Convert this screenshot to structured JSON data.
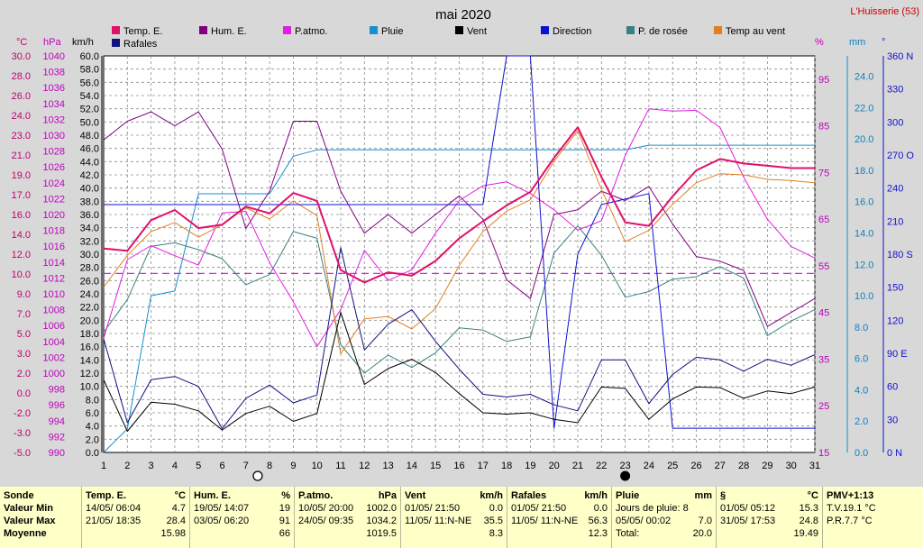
{
  "header": {
    "title": "mai 2020",
    "station": "L'Huisserie (53)"
  },
  "legend": [
    {
      "label": "Temp. E.",
      "color": "#e0106a"
    },
    {
      "label": "Hum. E.",
      "color": "#800080"
    },
    {
      "label": "P.atmo.",
      "color": "#e020e0"
    },
    {
      "label": "Pluie",
      "color": "#1890d0"
    },
    {
      "label": "Vent",
      "color": "#000000"
    },
    {
      "label": "Direction",
      "color": "#1010d0"
    },
    {
      "label": "P. de rosée",
      "color": "#3a8080"
    },
    {
      "label": "Temp au vent",
      "color": "#e08020"
    },
    {
      "label": "Rafales",
      "color": "#101080"
    }
  ],
  "axes": {
    "temp": {
      "unit": "°C",
      "ticks": [
        "30.0",
        "28.0",
        "26.0",
        "24.0",
        "23.0",
        "21.0",
        "19.0",
        "17.0",
        "16.0",
        "14.0",
        "12.0",
        "10.0",
        "9.0",
        "7.0",
        "5.0",
        "3.0",
        "2.0",
        "0.0",
        "-2.0",
        "-3.0",
        "-5.0"
      ]
    },
    "press": {
      "unit": "hPa",
      "ticks": [
        "1040",
        "1038",
        "1036",
        "1034",
        "1032",
        "1030",
        "1028",
        "1026",
        "1024",
        "1022",
        "1020",
        "1018",
        "1016",
        "1014",
        "1012",
        "1010",
        "1008",
        "1006",
        "1004",
        "1002",
        "1000",
        "998",
        "996",
        "994",
        "992",
        "990"
      ]
    },
    "wind": {
      "unit": "km/h",
      "ticks": [
        "60.0",
        "58.0",
        "56.0",
        "54.0",
        "52.0",
        "50.0",
        "48.0",
        "46.0",
        "44.0",
        "42.0",
        "40.0",
        "38.0",
        "36.0",
        "34.0",
        "32.0",
        "30.0",
        "28.0",
        "26.0",
        "24.0",
        "22.0",
        "20.0",
        "18.0",
        "16.0",
        "14.0",
        "12.0",
        "10.0",
        "8.0",
        "6.0",
        "4.0",
        "2.0",
        "0.0"
      ]
    },
    "hum": {
      "unit": "%",
      "ticks": [
        "95",
        "85",
        "75",
        "65",
        "55",
        "45",
        "35",
        "25",
        "15"
      ]
    },
    "rain": {
      "unit": "mm",
      "ticks": [
        "24.0",
        "22.0",
        "20.0",
        "18.0",
        "16.0",
        "14.0",
        "12.0",
        "10.0",
        "8.0",
        "6.0",
        "4.0",
        "2.0",
        "0.0"
      ]
    },
    "dir": {
      "unit": "°",
      "ticks": [
        "360 N",
        "330",
        "300",
        "270 O",
        "240",
        "210",
        "180 S",
        "150",
        "120",
        "90 E",
        "60",
        "30",
        "0 N"
      ]
    },
    "days": [
      "1",
      "2",
      "3",
      "4",
      "5",
      "6",
      "7",
      "8",
      "9",
      "10",
      "11",
      "12",
      "13",
      "14",
      "15",
      "16",
      "17",
      "18",
      "19",
      "20",
      "21",
      "22",
      "23",
      "24",
      "25",
      "26",
      "27",
      "28",
      "29",
      "30",
      "31"
    ]
  },
  "chart_data": {
    "type": "line",
    "title": "mai 2020",
    "x": [
      1,
      2,
      3,
      4,
      5,
      6,
      7,
      8,
      9,
      10,
      11,
      12,
      13,
      14,
      15,
      16,
      17,
      18,
      19,
      20,
      21,
      22,
      23,
      24,
      25,
      26,
      27,
      28,
      29,
      30,
      31
    ],
    "xlim": [
      1,
      31
    ],
    "scales": {
      "temp_c": [
        -5,
        30
      ],
      "pressure_hpa": [
        990,
        1041
      ],
      "wind_kmh": [
        0,
        60
      ],
      "humidity_pct": [
        15,
        100
      ],
      "rain_mm": [
        0,
        25.3
      ],
      "direction_deg": [
        0,
        360
      ]
    },
    "moon_phases": [
      {
        "day": 7.5,
        "phase": "full"
      },
      {
        "day": 23,
        "phase": "new"
      }
    ],
    "reference_line": {
      "series": "Temp. E.",
      "value": 10.8,
      "style": "dashed"
    },
    "series": [
      {
        "name": "Temp. E.",
        "color": "#e0106a",
        "scale": "temp_c",
        "width": 2,
        "values": [
          13.0,
          12.8,
          15.5,
          16.4,
          14.8,
          15.1,
          16.7,
          16.1,
          17.9,
          17.2,
          11.1,
          10.0,
          10.9,
          10.6,
          11.9,
          13.9,
          15.4,
          16.8,
          18.0,
          21.0,
          23.7,
          19.3,
          15.3,
          15.0,
          17.6,
          19.9,
          20.9,
          20.5,
          20.3,
          20.1,
          20.1
        ]
      },
      {
        "name": "Hum. E.",
        "color": "#800080",
        "scale": "humidity_pct",
        "values": [
          82,
          86,
          88,
          85,
          88,
          80,
          63,
          71,
          86,
          86,
          71,
          62,
          66,
          62,
          66,
          70,
          65,
          52,
          48,
          66,
          67,
          71,
          69,
          72,
          64,
          57,
          56,
          54,
          42,
          45,
          48
        ]
      },
      {
        "name": "P.atmo.",
        "color": "#e020e0",
        "scale": "pressure_hpa",
        "values": [
          1004.7,
          1014.8,
          1016.6,
          1015.3,
          1014.1,
          1020.8,
          1021.0,
          1014.4,
          1009.4,
          1003.6,
          1008.4,
          1016.0,
          1012.1,
          1013.5,
          1018.2,
          1022.4,
          1024.3,
          1024.8,
          1023.3,
          1021.2,
          1018.6,
          1019.8,
          1028.2,
          1034.2,
          1033.9,
          1034.0,
          1031.8,
          1025.4,
          1020.0,
          1016.5,
          1015.0
        ]
      },
      {
        "name": "Pluie",
        "color": "#1890d0",
        "scale": "rain_mm",
        "values": [
          0.0,
          1.5,
          10.0,
          10.3,
          16.5,
          16.5,
          16.5,
          16.5,
          18.9,
          19.3,
          19.3,
          19.3,
          19.3,
          19.3,
          19.3,
          19.3,
          19.3,
          19.3,
          19.3,
          19.3,
          19.3,
          19.3,
          19.3,
          19.6,
          19.6,
          19.6,
          19.6,
          19.6,
          19.6,
          19.6,
          19.6
        ]
      },
      {
        "name": "Vent",
        "color": "#000000",
        "scale": "wind_kmh",
        "values": [
          11.0,
          3.2,
          7.6,
          7.3,
          6.3,
          3.4,
          5.9,
          7.0,
          4.7,
          5.9,
          21.2,
          10.3,
          12.7,
          14.1,
          12.1,
          8.9,
          6.0,
          5.8,
          6.0,
          5.0,
          4.5,
          9.9,
          9.7,
          5.0,
          8.1,
          9.9,
          9.8,
          8.2,
          9.3,
          8.9,
          9.9
        ]
      },
      {
        "name": "Direction",
        "color": "#1010d0",
        "scale": "direction_deg",
        "values": [
          225,
          225,
          225,
          225,
          225,
          225,
          225,
          225,
          225,
          225,
          225,
          225,
          225,
          225,
          225,
          225,
          225,
          360,
          360,
          22,
          180,
          225,
          230,
          235,
          22,
          22,
          22,
          22,
          22,
          22,
          22
        ]
      },
      {
        "name": "P. de rosée",
        "color": "#3a8080",
        "scale": "temp_c",
        "values": [
          5.6,
          8.5,
          13.2,
          13.5,
          12.9,
          12.1,
          9.8,
          10.7,
          14.5,
          13.9,
          4.5,
          2.0,
          3.6,
          2.5,
          3.8,
          6.0,
          5.8,
          4.8,
          5.2,
          12.6,
          15.0,
          12.4,
          8.7,
          9.2,
          10.3,
          10.5,
          11.4,
          10.4,
          5.3,
          6.6,
          7.6
        ]
      },
      {
        "name": "Temp au vent",
        "color": "#e08020",
        "scale": "temp_c",
        "values": [
          9.6,
          12.4,
          14.5,
          15.3,
          14.0,
          15.1,
          16.6,
          15.6,
          17.2,
          15.9,
          3.7,
          6.8,
          7.0,
          5.9,
          7.7,
          11.5,
          14.5,
          16.3,
          17.3,
          20.7,
          23.4,
          18.2,
          13.6,
          14.6,
          16.9,
          18.8,
          19.6,
          19.5,
          19.1,
          19.0,
          18.8
        ]
      },
      {
        "name": "Rafales",
        "color": "#101080",
        "scale": "wind_kmh",
        "values": [
          17.2,
          4.5,
          11.0,
          11.5,
          10.0,
          3.6,
          8.2,
          10.2,
          7.5,
          8.7,
          31.0,
          15.5,
          19.4,
          21.6,
          16.8,
          12.6,
          8.8,
          8.4,
          8.8,
          7.2,
          6.3,
          14.0,
          14.0,
          7.4,
          11.8,
          14.4,
          14.0,
          12.3,
          14.1,
          13.2,
          14.8
        ]
      }
    ]
  },
  "summary": {
    "sonde": {
      "title": "Sonde",
      "rows": [
        "Valeur Min",
        "Valeur Max",
        "Moyenne"
      ]
    },
    "temp": {
      "title": "Temp. E.",
      "unit": "°C",
      "r1d": "14/05/ 06:04",
      "r1v": "4.7",
      "r2d": "21/05/ 18:35",
      "r2v": "28.4",
      "avg": "15.98"
    },
    "hum": {
      "title": "Hum. E.",
      "unit": "%",
      "r1d": "19/05/ 14:07",
      "r1v": "19",
      "r2d": "03/05/ 06:20",
      "r2v": "91",
      "avg": "66"
    },
    "press": {
      "title": "P.atmo.",
      "unit": "hPa",
      "r1d": "10/05/ 20:00",
      "r1v": "1002.0",
      "r2d": "24/05/ 09:35",
      "r2v": "1034.2",
      "avg": "1019.5"
    },
    "vent": {
      "title": "Vent",
      "unit": "km/h",
      "r1d": "01/05/ 21:50",
      "r1v": "0.0",
      "r2d": "11/05/ 11:N-NE",
      "r2v": "35.5",
      "avg": "8.3"
    },
    "raf": {
      "title": "Rafales",
      "unit": "km/h",
      "r1d": "01/05/ 21:50",
      "r1v": "0.0",
      "r2d": "11/05/ 11:N-NE",
      "r2v": "56.3",
      "avg": "12.3"
    },
    "pluie": {
      "title": "Pluie",
      "unit": "mm",
      "r1": "Jours de pluie: 8",
      "r2d": "05/05/ 00:02",
      "r2v": "7.0",
      "r3d": "Total:",
      "r3v": "20.0"
    },
    "rosee": {
      "title": "§",
      "unit": "°C",
      "r1d": "01/05/ 05:12",
      "r1v": "15.3",
      "r2d": "31/05/ 17:53",
      "r2v": "24.8",
      "avg": "19.49"
    },
    "pmv": {
      "title": "PMV+1:13",
      "r1": "T.V.19.1 °C",
      "r2": "P.R.7.7 °C"
    }
  }
}
